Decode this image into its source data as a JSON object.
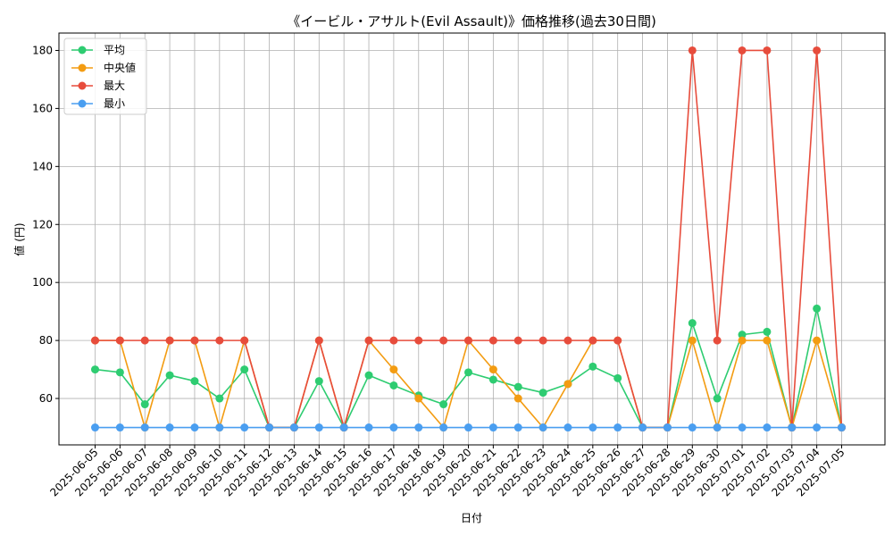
{
  "chart_data": {
    "type": "line",
    "title": "《イービル・アサルト(Evil Assault)》価格推移(過去30日間)",
    "xlabel": "日付",
    "ylabel": "値 (円)",
    "ylim": [
      44,
      186
    ],
    "yticks": [
      60,
      80,
      100,
      120,
      140,
      160,
      180
    ],
    "grid": true,
    "legend_position": "top-left",
    "categories": [
      "2025-06-05",
      "2025-06-06",
      "2025-06-07",
      "2025-06-08",
      "2025-06-09",
      "2025-06-10",
      "2025-06-11",
      "2025-06-12",
      "2025-06-13",
      "2025-06-14",
      "2025-06-15",
      "2025-06-16",
      "2025-06-17",
      "2025-06-18",
      "2025-06-19",
      "2025-06-20",
      "2025-06-21",
      "2025-06-22",
      "2025-06-23",
      "2025-06-24",
      "2025-06-25",
      "2025-06-26",
      "2025-06-27",
      "2025-06-28",
      "2025-06-29",
      "2025-06-30",
      "2025-07-01",
      "2025-07-02",
      "2025-07-03",
      "2025-07-04",
      "2025-07-05"
    ],
    "series": [
      {
        "name": "平均",
        "color": "#2ecc71",
        "values": [
          70,
          69,
          58,
          68,
          66,
          60,
          70,
          50,
          50,
          66,
          50,
          68,
          64.5,
          61,
          58,
          69,
          66.5,
          64,
          62,
          65,
          71,
          67,
          50,
          50,
          86,
          60,
          82,
          83,
          50,
          91,
          50
        ]
      },
      {
        "name": "中央値",
        "color": "#f39c12",
        "values": [
          80,
          80,
          50,
          80,
          80,
          50,
          80,
          50,
          50,
          80,
          50,
          80,
          70,
          60,
          50,
          80,
          70,
          60,
          50,
          65,
          80,
          80,
          50,
          50,
          80,
          50,
          80,
          80,
          50,
          80,
          50
        ]
      },
      {
        "name": "最大",
        "color": "#e74c3c",
        "values": [
          80,
          80,
          80,
          80,
          80,
          80,
          80,
          50,
          50,
          80,
          50,
          80,
          80,
          80,
          80,
          80,
          80,
          80,
          80,
          80,
          80,
          80,
          50,
          50,
          180,
          80,
          180,
          180,
          50,
          180,
          50
        ]
      },
      {
        "name": "最小",
        "color": "#4a9ef0",
        "values": [
          50,
          50,
          50,
          50,
          50,
          50,
          50,
          50,
          50,
          50,
          50,
          50,
          50,
          50,
          50,
          50,
          50,
          50,
          50,
          50,
          50,
          50,
          50,
          50,
          50,
          50,
          50,
          50,
          50,
          50,
          50
        ]
      }
    ]
  }
}
